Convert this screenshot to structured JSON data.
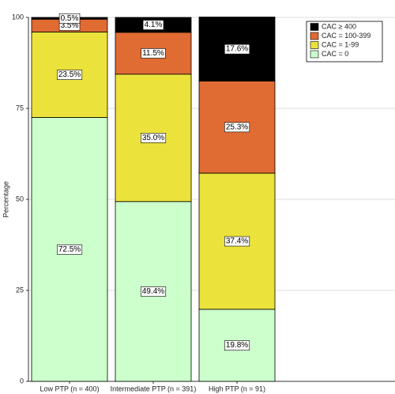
{
  "chart_data": {
    "type": "stacked-bar",
    "y_label": "Percentage",
    "categories": [
      "Low PTP (n = 400)",
      "Intermediate PTP (n = 391)",
      "High PTP (n = 91)"
    ],
    "series": [
      {
        "name": "CAC = 0",
        "color": "#ccffcc",
        "values": [
          72.5,
          49.4,
          19.8
        ],
        "value_labels": [
          "72.5%",
          "49.4%",
          "19.8%"
        ]
      },
      {
        "name": "CAC = 1-99",
        "color": "#ebe23b",
        "values": [
          23.5,
          35.0,
          37.4
        ],
        "value_labels": [
          "23.5%",
          "35.0%",
          "37.4%"
        ]
      },
      {
        "name": "CAC = 100-399",
        "color": "#e06b33",
        "values": [
          3.5,
          11.5,
          25.3
        ],
        "value_labels": [
          "3.5%",
          "11.5%",
          "25.3%"
        ]
      },
      {
        "name": "CAC ≥ 400",
        "color": "#000000",
        "values": [
          0.5,
          4.1,
          17.6
        ],
        "value_labels": [
          "0.5%",
          "4.1%",
          "17.6%"
        ]
      }
    ],
    "ylim": [
      0,
      100
    ],
    "yticks": [
      0,
      25,
      50,
      75,
      100
    ],
    "grid": true
  }
}
